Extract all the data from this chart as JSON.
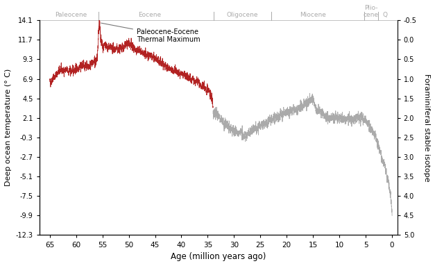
{
  "xlabel": "Age (million years ago)",
  "ylabel_left": "Deep ocean temperature (° C)",
  "ylabel_right": "Foraminiferal stable isotope",
  "ylim_left": [
    -12.3,
    14.1
  ],
  "ylim_right": [
    5.0,
    -0.5
  ],
  "xlim_left": 67,
  "xlim_right": -1,
  "xticks": [
    65,
    60,
    55,
    50,
    45,
    40,
    35,
    30,
    25,
    20,
    15,
    10,
    5,
    0
  ],
  "yticks_left": [
    -12.3,
    -9.9,
    -7.5,
    -5.1,
    -2.7,
    -0.3,
    2.1,
    4.5,
    6.9,
    9.3,
    11.7,
    14.1
  ],
  "yticks_right": [
    -0.5,
    0.0,
    0.5,
    1.0,
    1.5,
    2.0,
    2.5,
    3.0,
    3.5,
    4.0,
    4.5,
    5.0
  ],
  "color_red": "#b22222",
  "color_gray": "#aaaaaa",
  "color_epoch": "#aaaaaa",
  "annotation_text": "Paleocene-Eocene\nThermal Maximum",
  "epochs": [
    {
      "name": "Paleocene",
      "x_center": 61.0,
      "x_end": 55.8
    },
    {
      "name": "Eocene",
      "x_center": 46.0,
      "x_end": 33.9
    },
    {
      "name": "Oligocene",
      "x_center": 28.5,
      "x_end": 23.0
    },
    {
      "name": "Miocene",
      "x_center": 15.0,
      "x_end": 5.3
    },
    {
      "name": "Plio-\ncene",
      "x_center": 4.0,
      "x_end": 2.6
    },
    {
      "name": "Q",
      "x_center": 1.3,
      "x_end": -1
    }
  ],
  "linewidth": 0.6,
  "figsize": [
    6.27,
    3.83
  ],
  "dpi": 100
}
